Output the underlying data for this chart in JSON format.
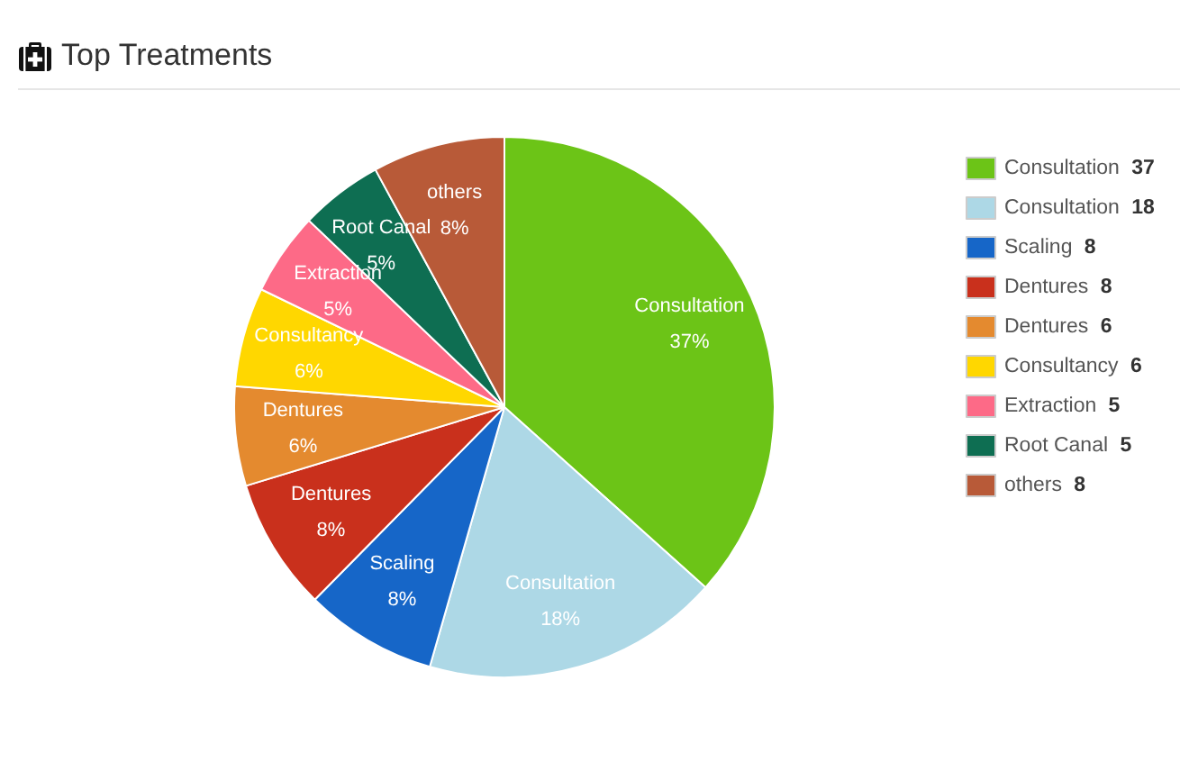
{
  "chart_data": {
    "type": "pie",
    "title": "Top Treatments",
    "categories": [
      "Consultation",
      "Consultation",
      "Scaling",
      "Dentures",
      "Dentures",
      "Consultancy",
      "Extraction",
      "Root Canal",
      "others"
    ],
    "values": [
      37,
      18,
      8,
      8,
      6,
      6,
      5,
      5,
      8
    ],
    "colors": [
      "#6cc417",
      "#add8e6",
      "#1666c8",
      "#c9301c",
      "#e48a2f",
      "#ffd700",
      "#fd6a87",
      "#0e6e52",
      "#b85a38"
    ],
    "annotations": [
      "37%",
      "18%",
      "8%",
      "8%",
      "6%",
      "6%",
      "5%",
      "5%",
      "8%"
    ],
    "data_labels": true,
    "legend": "right"
  }
}
